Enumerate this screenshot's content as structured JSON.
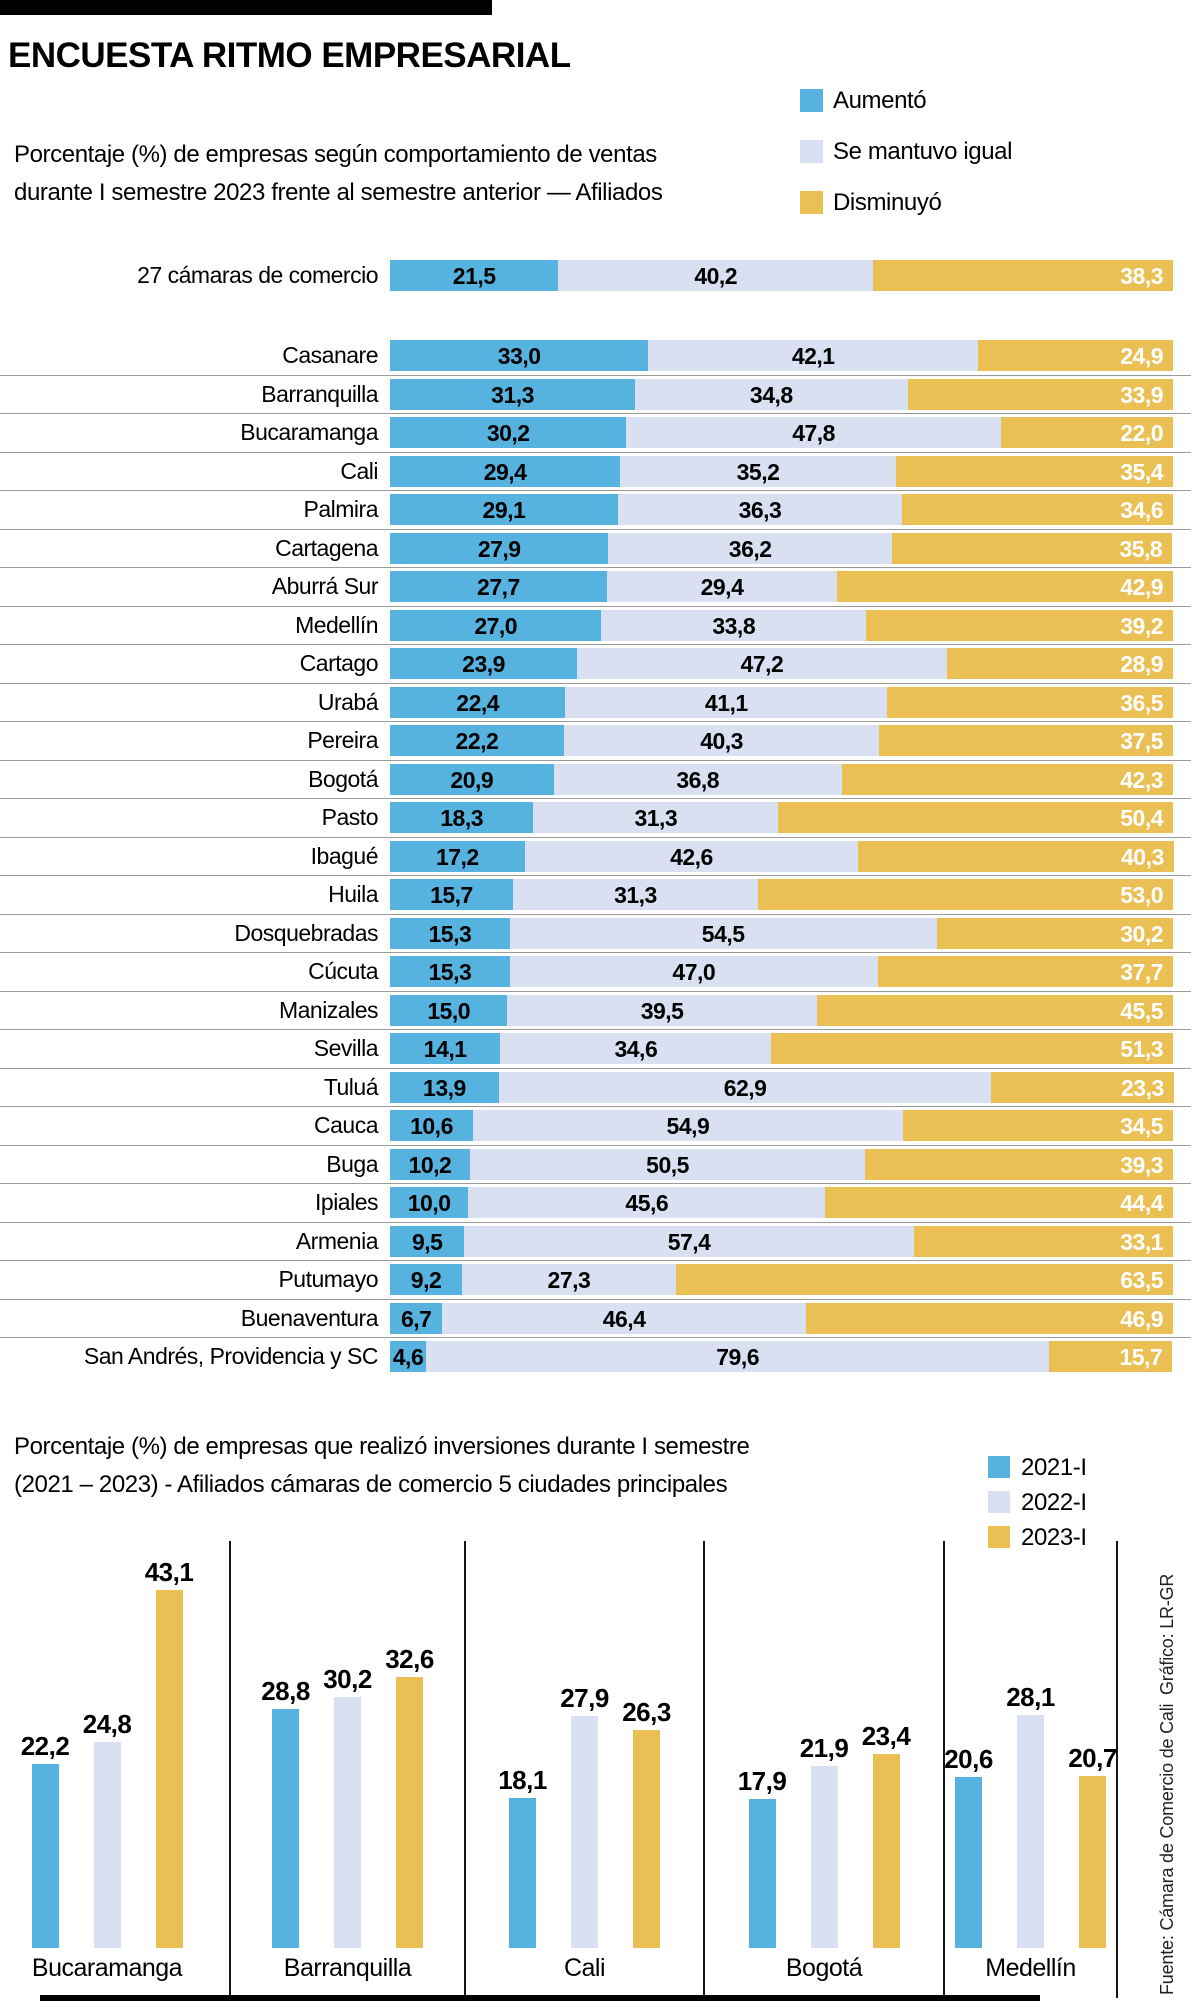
{
  "header": {
    "title": "ENCUESTA RITMO EMPRESARIAL",
    "subtitle_line1": "Porcentaje (%) de empresas según comportamiento de ventas",
    "subtitle_line2": "durante I semestre 2023 frente al semestre anterior — Afiliados"
  },
  "section2": {
    "subtitle_line1": "Porcentaje (%) de empresas que realizó inversiones durante I semestre",
    "subtitle_line2": "(2021 – 2023) - Afiliados cámaras de comercio 5 ciudades principales"
  },
  "palette": {
    "series": [
      "#56b3df",
      "#d8e0f2",
      "#eac054"
    ],
    "separator": "#9b9b9b",
    "accent_bar": "#000000"
  },
  "legend_sales": {
    "items": [
      "Aumentó",
      "Se mantuvo igual",
      "Disminuyó"
    ]
  },
  "legend_years": {
    "items": [
      "2021-I",
      "2022-I",
      "2023-I"
    ]
  },
  "credits": {
    "grafico": "Gráfico: LR-GR",
    "fuente": "Fuente: Cámara de Comercio de Cali"
  },
  "chart_data": [
    {
      "type": "bar",
      "subtype": "horizontal-stacked",
      "unit": "%",
      "series_names": [
        "Aumentó",
        "Se mantuvo igual",
        "Disminuyó"
      ],
      "legend_position": "top-right",
      "xlim": [
        0,
        100
      ],
      "total_row": {
        "label": "27 cámaras de comercio",
        "values": [
          21.5,
          40.2,
          38.3
        ]
      },
      "rows": [
        {
          "label": "Casanare",
          "values": [
            33.0,
            42.1,
            24.9
          ]
        },
        {
          "label": "Barranquilla",
          "values": [
            31.3,
            34.8,
            33.9
          ]
        },
        {
          "label": "Bucaramanga",
          "values": [
            30.2,
            47.8,
            22.0
          ]
        },
        {
          "label": "Cali",
          "values": [
            29.4,
            35.2,
            35.4
          ]
        },
        {
          "label": "Palmira",
          "values": [
            29.1,
            36.3,
            34.6
          ]
        },
        {
          "label": "Cartagena",
          "values": [
            27.9,
            36.2,
            35.8
          ]
        },
        {
          "label": "Aburrá Sur",
          "values": [
            27.7,
            29.4,
            42.9
          ]
        },
        {
          "label": "Medellín",
          "values": [
            27.0,
            33.8,
            39.2
          ]
        },
        {
          "label": "Cartago",
          "values": [
            23.9,
            47.2,
            28.9
          ]
        },
        {
          "label": "Urabá",
          "values": [
            22.4,
            41.1,
            36.5
          ]
        },
        {
          "label": "Pereira",
          "values": [
            22.2,
            40.3,
            37.5
          ]
        },
        {
          "label": "Bogotá",
          "values": [
            20.9,
            36.8,
            42.3
          ]
        },
        {
          "label": "Pasto",
          "values": [
            18.3,
            31.3,
            50.4
          ]
        },
        {
          "label": "Ibagué",
          "values": [
            17.2,
            42.6,
            40.3
          ]
        },
        {
          "label": "Huila",
          "values": [
            15.7,
            31.3,
            53.0
          ]
        },
        {
          "label": "Dosquebradas",
          "values": [
            15.3,
            54.5,
            30.2
          ]
        },
        {
          "label": "Cúcuta",
          "values": [
            15.3,
            47.0,
            37.7
          ]
        },
        {
          "label": "Manizales",
          "values": [
            15.0,
            39.5,
            45.5
          ]
        },
        {
          "label": "Sevilla",
          "values": [
            14.1,
            34.6,
            51.3
          ]
        },
        {
          "label": "Tuluá",
          "values": [
            13.9,
            62.9,
            23.3
          ]
        },
        {
          "label": "Cauca",
          "values": [
            10.6,
            54.9,
            34.5
          ]
        },
        {
          "label": "Buga",
          "values": [
            10.2,
            50.5,
            39.3
          ]
        },
        {
          "label": "Ipiales",
          "values": [
            10.0,
            45.6,
            44.4
          ]
        },
        {
          "label": "Armenia",
          "values": [
            9.5,
            57.4,
            33.1
          ]
        },
        {
          "label": "Putumayo",
          "values": [
            9.2,
            27.3,
            63.5
          ]
        },
        {
          "label": "Buenaventura",
          "values": [
            6.7,
            46.4,
            46.9
          ]
        },
        {
          "label": "San Andrés, Providencia y SC",
          "values": [
            4.6,
            79.6,
            15.7
          ]
        }
      ]
    },
    {
      "type": "bar",
      "subtype": "vertical-grouped",
      "unit": "%",
      "series": [
        "2021-I",
        "2022-I",
        "2023-I"
      ],
      "categories": [
        "Bucaramanga",
        "Barranquilla",
        "Cali",
        "Bogotá",
        "Medellín"
      ],
      "values": [
        [
          22.2,
          24.8,
          43.1
        ],
        [
          28.8,
          30.2,
          32.6
        ],
        [
          18.1,
          27.9,
          26.3
        ],
        [
          17.9,
          21.9,
          23.4
        ],
        [
          20.6,
          28.1,
          20.7
        ]
      ],
      "legend_position": "top-right",
      "ylim": [
        0,
        45
      ],
      "grid": false
    }
  ]
}
